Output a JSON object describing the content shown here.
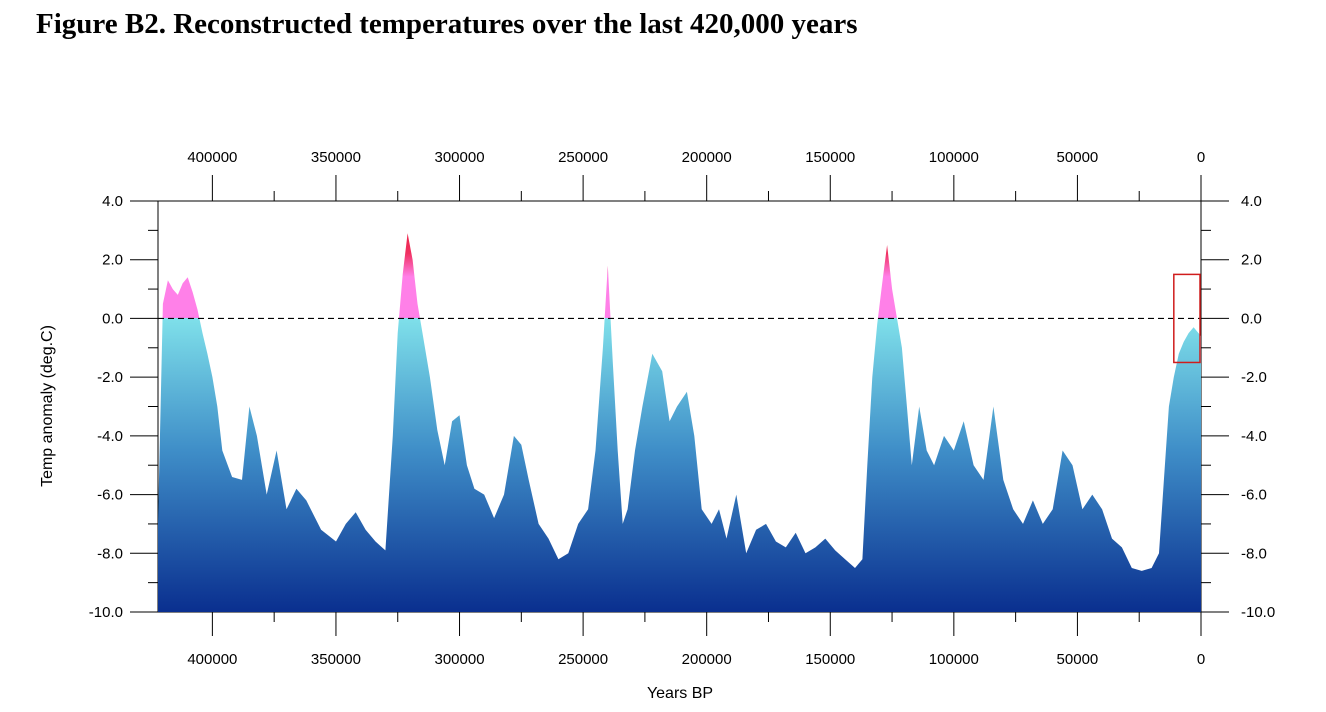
{
  "figure_title": "Figure B2. Reconstructed temperatures over the last 420,000 years",
  "chart_data": {
    "type": "area",
    "xlabel": "Years BP",
    "ylabel": "Temp anomaly (deg.C)",
    "x_axis_reversed": true,
    "xlim": [
      0,
      422000
    ],
    "ylim": [
      -10.0,
      4.0
    ],
    "x_ticks": [
      400000,
      350000,
      300000,
      250000,
      200000,
      150000,
      100000,
      50000,
      0
    ],
    "x_tick_labels": [
      "400000",
      "350000",
      "300000",
      "250000",
      "200000",
      "150000",
      "100000",
      "50000",
      "0"
    ],
    "y_ticks": [
      4.0,
      2.0,
      0.0,
      -2.0,
      -4.0,
      -6.0,
      -8.0,
      -10.0
    ],
    "y_tick_labels": [
      "4.0",
      "2.0",
      "0.0",
      "-2.0",
      "-4.0",
      "-6.0",
      "-8.0",
      "-10.0"
    ],
    "reference_line": {
      "y": 0.0,
      "style": "dashed"
    },
    "highlight_box": {
      "x_range": [
        0,
        11000
      ],
      "y_range": [
        -1.5,
        1.5
      ],
      "color": "#d01c1c"
    },
    "colors": {
      "negative_top": "#7fe0ea",
      "negative_bottom": "#0a2f8f",
      "positive_low": "#ff80e8",
      "positive_high": "#e8102a"
    },
    "series": [
      {
        "x": [
          422000,
          420000,
          418000,
          416000,
          414000,
          412000,
          410000,
          408000,
          406000,
          404000,
          402000,
          400000,
          398000,
          396000,
          392000,
          388000,
          385000,
          382000,
          378000,
          374000,
          370000,
          366000,
          362000,
          356000,
          350000,
          346000,
          342000,
          338000,
          334000,
          330000,
          327000,
          325000,
          323000,
          321000,
          319000,
          317000,
          315000,
          312000,
          309000,
          306000,
          303000,
          300000,
          297000,
          294000,
          290000,
          286000,
          282000,
          278000,
          275000,
          272000,
          268000,
          264000,
          260000,
          256000,
          252000,
          248000,
          245000,
          242000,
          240000,
          238000,
          236000,
          234000,
          232000,
          229000,
          226000,
          222000,
          218000,
          215000,
          212000,
          208000,
          205000,
          202000,
          198000,
          195000,
          192000,
          188000,
          184000,
          180000,
          176000,
          172000,
          168000,
          164000,
          160000,
          156000,
          152000,
          148000,
          144000,
          140000,
          137000,
          135000,
          133000,
          131000,
          129000,
          127000,
          125000,
          123000,
          121000,
          119000,
          117000,
          114000,
          111000,
          108000,
          104000,
          100000,
          96000,
          92000,
          88000,
          84000,
          80000,
          76000,
          72000,
          68000,
          64000,
          60000,
          56000,
          52000,
          48000,
          44000,
          40000,
          36000,
          32000,
          28000,
          24000,
          20000,
          17000,
          15000,
          13000,
          11000,
          9000,
          7000,
          5000,
          3000,
          1000,
          0
        ],
        "y": [
          -7.0,
          0.5,
          1.3,
          1.0,
          0.8,
          1.2,
          1.4,
          0.9,
          0.3,
          -0.5,
          -1.2,
          -2.0,
          -3.0,
          -4.5,
          -5.4,
          -5.5,
          -3.0,
          -4.0,
          -6.0,
          -4.5,
          -6.5,
          -5.8,
          -6.2,
          -7.2,
          -7.6,
          -7.0,
          -6.6,
          -7.2,
          -7.6,
          -7.9,
          -4.0,
          -0.5,
          1.5,
          2.9,
          2.0,
          0.5,
          -0.5,
          -2.0,
          -3.8,
          -5.0,
          -3.5,
          -3.3,
          -5.0,
          -5.8,
          -6.0,
          -6.8,
          -6.0,
          -4.0,
          -4.3,
          -5.5,
          -7.0,
          -7.5,
          -8.2,
          -8.0,
          -7.0,
          -6.5,
          -4.5,
          -1.0,
          1.8,
          -1.5,
          -4.5,
          -7.0,
          -6.5,
          -4.5,
          -3.0,
          -1.2,
          -1.8,
          -3.5,
          -3.0,
          -2.5,
          -4.0,
          -6.5,
          -7.0,
          -6.5,
          -7.5,
          -6.0,
          -8.0,
          -7.2,
          -7.0,
          -7.6,
          -7.8,
          -7.3,
          -8.0,
          -7.8,
          -7.5,
          -7.9,
          -8.2,
          -8.5,
          -8.2,
          -5.0,
          -2.0,
          -0.2,
          1.2,
          2.5,
          1.0,
          0.0,
          -1.0,
          -3.0,
          -5.0,
          -3.0,
          -4.5,
          -5.0,
          -4.0,
          -4.5,
          -3.5,
          -5.0,
          -5.5,
          -3.0,
          -5.5,
          -6.5,
          -7.0,
          -6.2,
          -7.0,
          -6.5,
          -4.5,
          -5.0,
          -6.5,
          -6.0,
          -6.5,
          -7.5,
          -7.8,
          -8.5,
          -8.6,
          -8.5,
          -8.0,
          -5.5,
          -3.0,
          -2.0,
          -1.2,
          -0.8,
          -0.5,
          -0.3,
          -0.5,
          -0.6
        ]
      }
    ]
  }
}
